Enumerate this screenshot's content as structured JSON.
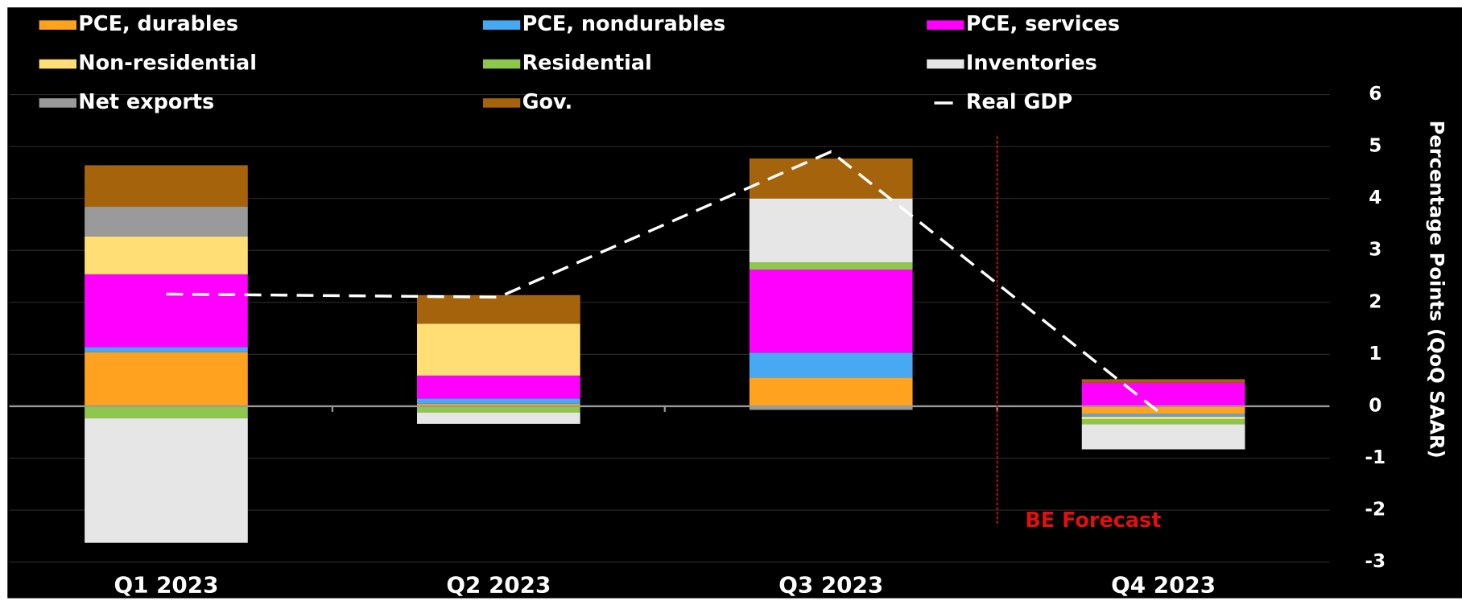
{
  "chart_data": {
    "type": "bar",
    "stacked": true,
    "categories": [
      "Q1 2023",
      "Q2 2023",
      "Q3 2023",
      "Q4 2023"
    ],
    "series": [
      {
        "name": "PCE, durables",
        "color": "#ffa21f",
        "values": [
          1.04,
          0.05,
          0.55,
          -0.15
        ]
      },
      {
        "name": "PCE, nondurables",
        "color": "#47a9f2",
        "values": [
          0.1,
          0.1,
          0.48,
          -0.05
        ]
      },
      {
        "name": "PCE, services",
        "color": "#ff00ff",
        "values": [
          1.4,
          0.44,
          1.6,
          0.45
        ]
      },
      {
        "name": "Non-residential",
        "color": "#ffdf75",
        "values": [
          0.73,
          1.0,
          0,
          -0.05
        ]
      },
      {
        "name": "Residential",
        "color": "#8dc84c",
        "values": [
          -0.23,
          -0.12,
          0.14,
          -0.1
        ]
      },
      {
        "name": "Inventories",
        "color": "#e6e6e6",
        "values": [
          -2.4,
          -0.22,
          1.23,
          -0.48
        ]
      },
      {
        "name": "Net exports",
        "color": "#9a9a9a",
        "values": [
          0.57,
          0,
          -0.07,
          0
        ]
      },
      {
        "name": "Gov.",
        "color": "#a5640c",
        "values": [
          0.8,
          0.55,
          0.77,
          0.07
        ]
      },
      {
        "name": "Real GDP",
        "type": "line",
        "color": "#ffffff",
        "dashed": true,
        "values": [
          2.16,
          2.1,
          4.9,
          -0.18
        ]
      }
    ],
    "ylim": [
      -3,
      6
    ],
    "yticks": [
      -3,
      -2,
      -1,
      0,
      1,
      2,
      3,
      4,
      5,
      6
    ],
    "y_axis_side": "right",
    "y_label": "Percentage Points (QoQ SAAR)",
    "annotation": "BE Forecast",
    "annotation_color": "#e01010",
    "grid": true
  }
}
